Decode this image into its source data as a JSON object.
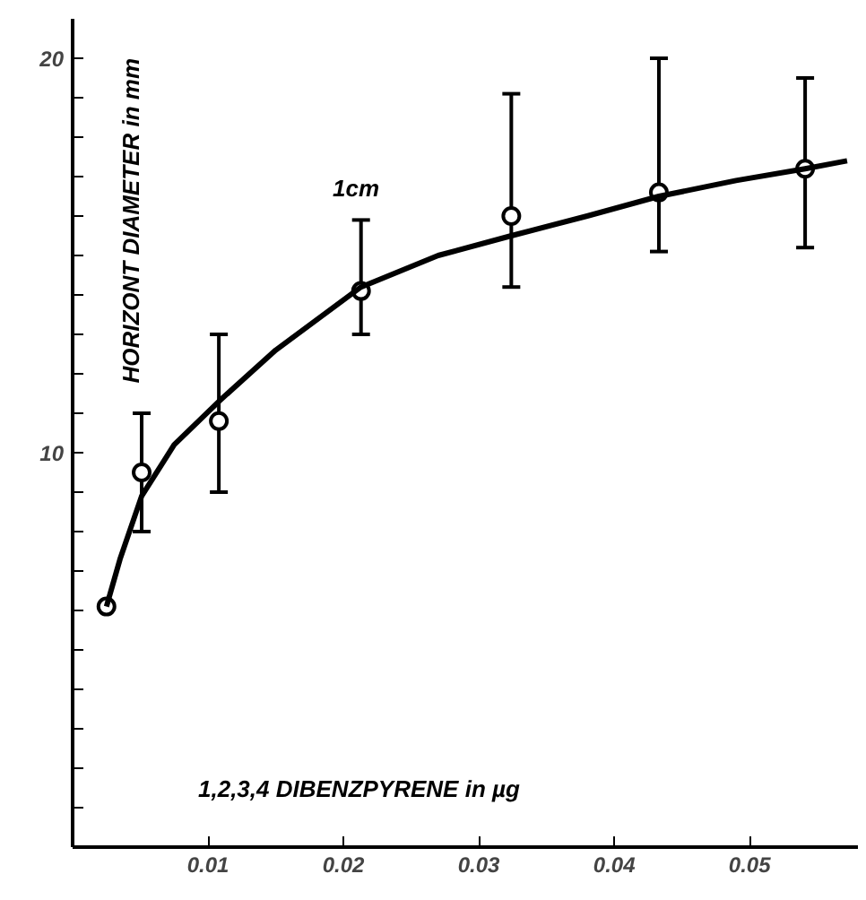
{
  "chart_data": {
    "type": "scatter",
    "xlabel": "1,2,3,4 DIBENZPYRENE in µg",
    "ylabel": "HORIZONT DIAMETER in mm",
    "annotations": [
      "1cm"
    ],
    "xlim": [
      0,
      0.058
    ],
    "ylim": [
      0,
      21
    ],
    "xticks": [
      0.01,
      0.02,
      0.03,
      0.04,
      0.05
    ],
    "yticks": [
      {
        "value": 1,
        "label": null
      },
      {
        "value": 2,
        "label": null
      },
      {
        "value": 3,
        "label": null
      },
      {
        "value": 4,
        "label": null
      },
      {
        "value": 5,
        "label": null
      },
      {
        "value": 6,
        "label": null
      },
      {
        "value": 7,
        "label": null
      },
      {
        "value": 8,
        "label": null
      },
      {
        "value": 9,
        "label": null
      },
      10,
      {
        "value": 11,
        "label": null
      },
      {
        "value": 12,
        "label": null
      },
      {
        "value": 13,
        "label": null
      },
      {
        "value": 14,
        "label": null
      },
      {
        "value": 15,
        "label": null
      },
      {
        "value": 16,
        "label": null
      },
      {
        "value": 17,
        "label": null
      },
      {
        "value": 18,
        "label": null
      },
      {
        "value": 19,
        "label": null
      },
      20
    ],
    "grid": false,
    "marker": "circle",
    "series": [
      {
        "color": "#000000",
        "x": [
          0.0025,
          0.0051,
          0.0108,
          0.0213,
          0.0324,
          0.0433,
          0.0541
        ],
        "values": [
          6.1,
          9.5,
          10.8,
          14.1,
          16.0,
          16.6,
          17.2
        ],
        "errors": [
          null,
          [
            8.0,
            11.0
          ],
          [
            9.0,
            13.0
          ],
          [
            13.0,
            15.9
          ],
          [
            14.2,
            19.1
          ],
          [
            15.1,
            20.0
          ],
          [
            15.2,
            19.5
          ]
        ]
      },
      {
        "type": "line",
        "color": "#000000",
        "marker": "none",
        "x": [
          0.0025,
          0.0035,
          0.0051,
          0.0075,
          0.0108,
          0.015,
          0.0213,
          0.027,
          0.0324,
          0.038,
          0.0433,
          0.049,
          0.0541,
          0.0572
        ],
        "values": [
          6.1,
          7.3,
          8.9,
          10.2,
          11.3,
          12.6,
          14.2,
          15.0,
          15.5,
          16.0,
          16.5,
          16.9,
          17.2,
          17.4
        ]
      }
    ]
  }
}
